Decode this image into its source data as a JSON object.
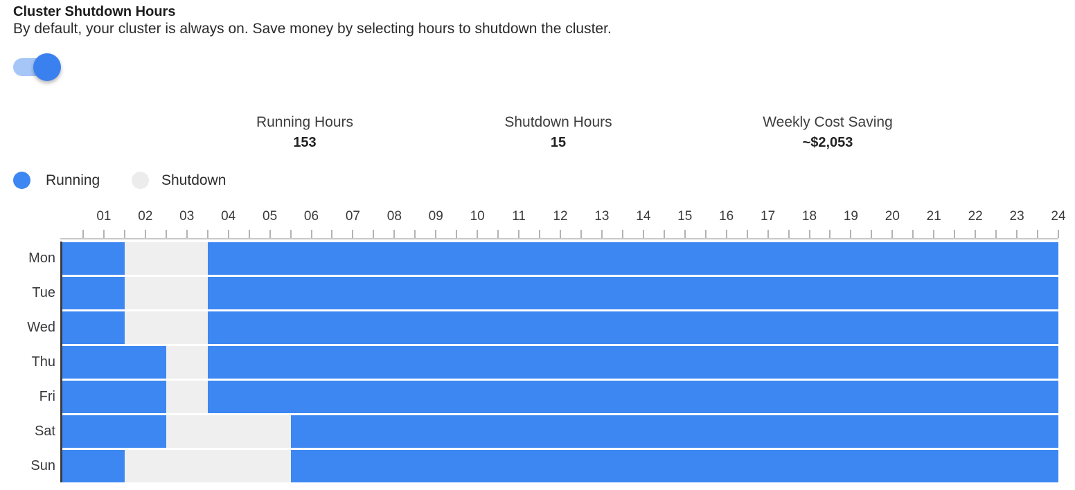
{
  "header": {
    "title": "Cluster Shutdown Hours",
    "subtitle": "By default, your cluster is always on. Save money by selecting hours to shutdown the cluster."
  },
  "toggle": {
    "name": "cluster-shutdown-schedule-toggle",
    "state": "on"
  },
  "stats": [
    {
      "label": "Running Hours",
      "value": "153"
    },
    {
      "label": "Shutdown Hours",
      "value": "15"
    },
    {
      "label": "Weekly Cost Saving",
      "value": "~$2,053"
    }
  ],
  "colors": {
    "running": "#3d87f2",
    "shutdown": "#efefef",
    "legend_shutdown_dot": "#ececec",
    "toggle_track": "#a6c6f8",
    "toggle_knob": "#3b80ef",
    "axis_line": "#c9c9c9",
    "tick": "#b3b3b3",
    "plot_border": "#3d3d3d"
  },
  "chart_data": {
    "type": "heatmap",
    "description": "Weekly cluster run/shutdown schedule grid; blue cells = running, grey cells = shutdown",
    "x_axis": {
      "range": [
        0,
        24
      ],
      "tick_labels": [
        "01",
        "02",
        "03",
        "04",
        "05",
        "06",
        "07",
        "08",
        "09",
        "10",
        "11",
        "12",
        "13",
        "14",
        "15",
        "16",
        "17",
        "18",
        "19",
        "20",
        "21",
        "22",
        "23",
        "24"
      ],
      "minor_tick_step": 0.5
    },
    "y_categories": [
      "Mon",
      "Tue",
      "Wed",
      "Thu",
      "Fri",
      "Sat",
      "Sun"
    ],
    "legend": [
      {
        "label": "Running",
        "color": "#3d87f2"
      },
      {
        "label": "Shutdown",
        "color": "#ececec"
      }
    ],
    "series": [
      {
        "day": "Mon",
        "shutdown_ranges": [
          [
            1.5,
            3.5
          ]
        ],
        "shutdown_hours": 2
      },
      {
        "day": "Tue",
        "shutdown_ranges": [
          [
            1.5,
            3.5
          ]
        ],
        "shutdown_hours": 2
      },
      {
        "day": "Wed",
        "shutdown_ranges": [
          [
            1.5,
            3.5
          ]
        ],
        "shutdown_hours": 2
      },
      {
        "day": "Thu",
        "shutdown_ranges": [
          [
            2.5,
            3.5
          ]
        ],
        "shutdown_hours": 1
      },
      {
        "day": "Fri",
        "shutdown_ranges": [
          [
            2.5,
            3.5
          ]
        ],
        "shutdown_hours": 1
      },
      {
        "day": "Sat",
        "shutdown_ranges": [
          [
            2.5,
            5.5
          ]
        ],
        "shutdown_hours": 3
      },
      {
        "day": "Sun",
        "shutdown_ranges": [
          [
            1.5,
            5.5
          ]
        ],
        "shutdown_hours": 4
      }
    ],
    "totals": {
      "running_hours": 153,
      "shutdown_hours": 15,
      "weekly_cost_saving": "~$2,053"
    }
  }
}
